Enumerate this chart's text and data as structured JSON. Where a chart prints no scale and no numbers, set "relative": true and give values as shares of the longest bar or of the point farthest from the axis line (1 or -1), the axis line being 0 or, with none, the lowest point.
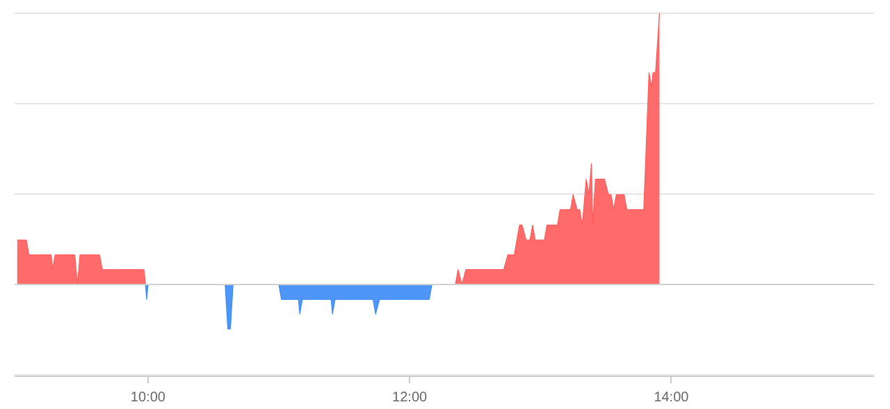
{
  "chart_data": {
    "type": "area",
    "relative": true,
    "grid": "y",
    "xlim": [
      8.98,
      15.55
    ],
    "xticks": [
      {
        "value": 10,
        "label": "10:00"
      },
      {
        "value": 12,
        "label": "12:00"
      },
      {
        "value": 14,
        "label": "14:00"
      }
    ],
    "series": [
      {
        "color": "#ff5a5a",
        "x": [
          9.0,
          9.07,
          9.09,
          9.26,
          9.27,
          9.29,
          9.44,
          9.46,
          9.48,
          9.63,
          9.65,
          9.97,
          9.98,
          null,
          12.35,
          12.37,
          12.4,
          12.43,
          12.72,
          12.75,
          12.8,
          12.84,
          12.86,
          12.89,
          12.92,
          12.94,
          12.96,
          13.03,
          13.05,
          13.13,
          13.15,
          13.23,
          13.25,
          13.28,
          13.3,
          13.32,
          13.35,
          13.37,
          13.39,
          13.4,
          13.42,
          13.49,
          13.52,
          13.54,
          13.56,
          13.58,
          13.64,
          13.66,
          13.79,
          13.83,
          13.85,
          13.86,
          13.88,
          13.91
        ],
        "values": [
          0.164,
          0.164,
          0.109,
          0.109,
          0.055,
          0.109,
          0.109,
          0,
          0.109,
          0.109,
          0.055,
          0.055,
          0,
          null,
          0,
          0.055,
          0,
          0.055,
          0.055,
          0.109,
          0.109,
          0.219,
          0.219,
          0.164,
          0.164,
          0.219,
          0.164,
          0.164,
          0.219,
          0.219,
          0.276,
          0.276,
          0.331,
          0.276,
          0.276,
          0.219,
          0.388,
          0.331,
          0.445,
          0.219,
          0.388,
          0.388,
          0.331,
          0.331,
          0.276,
          0.331,
          0.331,
          0.276,
          0.276,
          0.781,
          0.728,
          0.781,
          0.781,
          1.0
        ]
      },
      {
        "color": "#3b8cf7",
        "x": [
          9.98,
          9.99,
          10.0,
          10.59,
          10.61,
          10.63,
          10.65,
          11.0,
          11.02,
          11.15,
          11.16,
          11.18,
          11.4,
          11.41,
          11.43,
          11.72,
          11.74,
          11.77,
          12.15,
          12.17,
          12.35
        ],
        "values": [
          0,
          -0.055,
          0,
          0,
          -0.164,
          -0.164,
          0,
          0,
          -0.055,
          -0.055,
          -0.109,
          -0.055,
          -0.055,
          -0.109,
          -0.055,
          -0.055,
          -0.109,
          -0.055,
          -0.055,
          0,
          0
        ]
      }
    ]
  }
}
